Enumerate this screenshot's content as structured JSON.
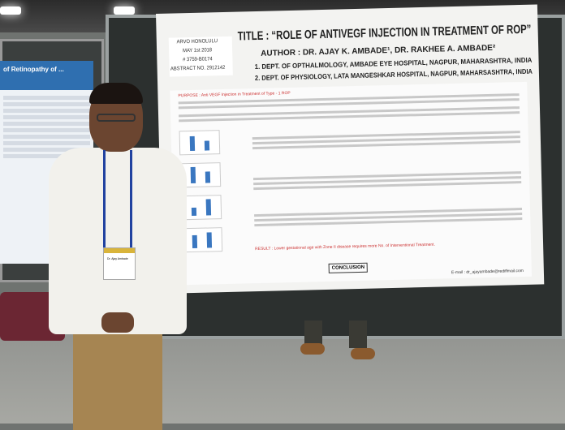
{
  "poster": {
    "badge": [
      "ARVO HONOLULU",
      "MAY 1st 2018",
      "# 3759-B0174",
      "ABSTRACT NO. 2912142"
    ],
    "title": "TITLE : “ROLE OF ANTIVEGF INJECTION IN TREATMENT OF ROP”",
    "authors": "AUTHOR : DR. AJAY K. AMBADE¹, DR. RAKHEE A. AMBADE²",
    "dept1": "1. DEPT. OF OPTHALMOLOGY, AMBADE EYE HOSPITAL, NAGPUR, MAHARASHTRA, INDIA",
    "dept2": "2. DEPT. OF PHYSIOLOGY, LATA MANGESHKAR HOSPITAL, NAGPUR, MAHARSASHTRA, INDIA",
    "purpose": "PURPOSE : Anti VEGF Injection in Treatment of Type - 1 ROP",
    "result": "RESULT : Lower gestational age with Zone II disease requires more No. of Interventional Treatment.",
    "conclusion": "CONCLUSION",
    "email": "E-mail : dr_ajayambade@rediffmail.com"
  },
  "left_poster": {
    "title": "of Retinopathy of ..."
  },
  "badge_name": "Dr. Ajay Ambade"
}
